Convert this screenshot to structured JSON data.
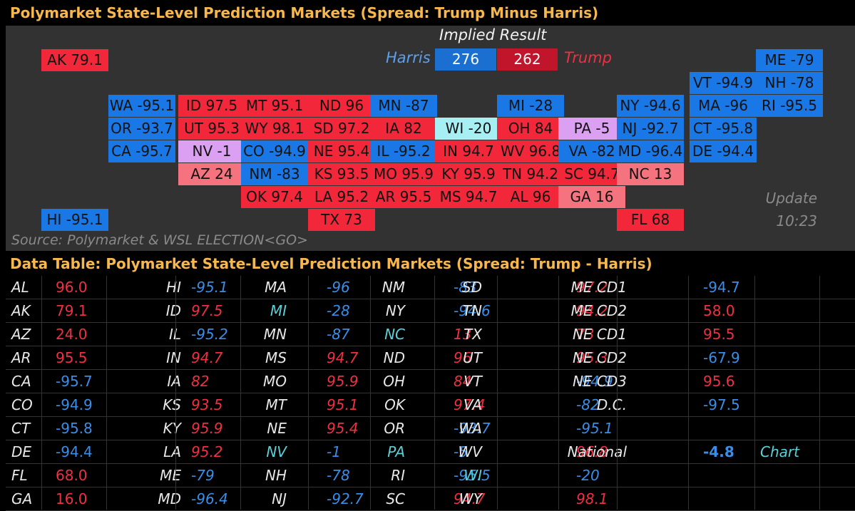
{
  "header": {
    "title": "Polymarket State-Level Prediction Markets (Spread: Trump Minus Harris)"
  },
  "implied": {
    "label": "Implied Result",
    "harris_label": "Harris",
    "harris_votes": "276",
    "trump_votes": "262",
    "trump_label": "Trump"
  },
  "update": {
    "label": "Update",
    "time": "10:23"
  },
  "source": "Source: Polymarket & WSL ELECTION<GO>",
  "table_title": "Data Table: Polymarket State-Level Prediction Markets (Spread: Trump - Harris)",
  "colors": {
    "dem": "#1a78e6",
    "rep": "#f2273a",
    "lean_rep": "#f5737e",
    "tossup_dem": "#a6eff2",
    "tossup_rep": "#dca0f2",
    "header": "#f5b74e"
  },
  "map_tiles": [
    {
      "label": "AK 79.1",
      "cls": "r"
    },
    {
      "label": "ME -79",
      "cls": "d"
    },
    {
      "label": "VT -94.9",
      "cls": "d"
    },
    {
      "label": "NH -78",
      "cls": "d"
    },
    {
      "label": "WA -95.1",
      "cls": "d"
    },
    {
      "label": "ID 97.5",
      "cls": "r"
    },
    {
      "label": "MT 95.1",
      "cls": "r"
    },
    {
      "label": "ND 96",
      "cls": "r"
    },
    {
      "label": "MN -87",
      "cls": "d"
    },
    {
      "label": "MI -28",
      "cls": "d"
    },
    {
      "label": "NY -94.6",
      "cls": "d"
    },
    {
      "label": "MA -96",
      "cls": "d"
    },
    {
      "label": "RI -95.5",
      "cls": "d"
    },
    {
      "label": "OR -93.7",
      "cls": "d"
    },
    {
      "label": "UT 95.3",
      "cls": "r"
    },
    {
      "label": "WY 98.1",
      "cls": "r"
    },
    {
      "label": "SD 97.2",
      "cls": "r"
    },
    {
      "label": "IA 82",
      "cls": "r"
    },
    {
      "label": "WI -20",
      "cls": "c"
    },
    {
      "label": "OH 84",
      "cls": "r"
    },
    {
      "label": "PA -5",
      "cls": "pu"
    },
    {
      "label": "NJ -92.7",
      "cls": "d"
    },
    {
      "label": "CT -95.8",
      "cls": "d"
    },
    {
      "label": "CA -95.7",
      "cls": "d"
    },
    {
      "label": "NV -1",
      "cls": "pu"
    },
    {
      "label": "CO -94.9",
      "cls": "d"
    },
    {
      "label": "NE 95.4",
      "cls": "r"
    },
    {
      "label": "IL -95.2",
      "cls": "d"
    },
    {
      "label": "IN 94.7",
      "cls": "r"
    },
    {
      "label": "WV 96.8",
      "cls": "r"
    },
    {
      "label": "VA -82",
      "cls": "d"
    },
    {
      "label": "MD -96.4",
      "cls": "d"
    },
    {
      "label": "DE -94.4",
      "cls": "d"
    },
    {
      "label": "AZ 24",
      "cls": "lr"
    },
    {
      "label": "NM -83",
      "cls": "d"
    },
    {
      "label": "KS 93.5",
      "cls": "r"
    },
    {
      "label": "MO 95.9",
      "cls": "r"
    },
    {
      "label": "KY 95.9",
      "cls": "r"
    },
    {
      "label": "TN 94.2",
      "cls": "r"
    },
    {
      "label": "SC 94.7",
      "cls": "r"
    },
    {
      "label": "NC 13",
      "cls": "lr"
    },
    {
      "label": "OK 97.4",
      "cls": "r"
    },
    {
      "label": "LA 95.2",
      "cls": "r"
    },
    {
      "label": "AR 95.5",
      "cls": "r"
    },
    {
      "label": "MS 94.7",
      "cls": "r"
    },
    {
      "label": "AL 96",
      "cls": "r"
    },
    {
      "label": "GA 16",
      "cls": "lr"
    },
    {
      "label": "HI -95.1",
      "cls": "d"
    },
    {
      "label": "TX 73",
      "cls": "r"
    },
    {
      "label": "FL 68",
      "cls": "r"
    }
  ],
  "table_rows": [
    [
      [
        "AL",
        "96.0",
        "pos"
      ],
      [
        "HI",
        "-95.1",
        "neg"
      ],
      [
        "MA",
        "-96",
        "neg"
      ],
      [
        "NM",
        "-83",
        "neg"
      ],
      [
        "SD",
        "97.2",
        "pos"
      ],
      [
        "ME CD1",
        "-94.7",
        "neg"
      ]
    ],
    [
      [
        "AK",
        "79.1",
        "pos"
      ],
      [
        "ID",
        "97.5",
        "pos"
      ],
      [
        "MI",
        "-28",
        "neg"
      ],
      [
        "NY",
        "-94.6",
        "neg"
      ],
      [
        "TN",
        "94.2",
        "pos"
      ],
      [
        "ME CD2",
        "58.0",
        "pos"
      ]
    ],
    [
      [
        "AZ",
        "24.0",
        "pos"
      ],
      [
        "IL",
        "-95.2",
        "neg"
      ],
      [
        "MN",
        "-87",
        "neg"
      ],
      [
        "NC",
        "13",
        "pos"
      ],
      [
        "TX",
        "73",
        "pos"
      ],
      [
        "NE CD1",
        "95.5",
        "pos"
      ]
    ],
    [
      [
        "AR",
        "95.5",
        "pos"
      ],
      [
        "IN",
        "94.7",
        "pos"
      ],
      [
        "MS",
        "94.7",
        "pos"
      ],
      [
        "ND",
        "96",
        "pos"
      ],
      [
        "UT",
        "95.3",
        "pos"
      ],
      [
        "NE CD2",
        "-67.9",
        "neg"
      ]
    ],
    [
      [
        "CA",
        "-95.7",
        "neg"
      ],
      [
        "IA",
        "82",
        "pos"
      ],
      [
        "MO",
        "95.9",
        "pos"
      ],
      [
        "OH",
        "84",
        "pos"
      ],
      [
        "VT",
        "-94.9",
        "neg"
      ],
      [
        "NE CD3",
        "95.6",
        "pos"
      ]
    ],
    [
      [
        "CO",
        "-94.9",
        "neg"
      ],
      [
        "KS",
        "93.5",
        "pos"
      ],
      [
        "MT",
        "95.1",
        "pos"
      ],
      [
        "OK",
        "97.4",
        "pos"
      ],
      [
        "VA",
        "-82",
        "neg"
      ],
      [
        "D.C.",
        "-97.5",
        "neg"
      ]
    ],
    [
      [
        "CT",
        "-95.8",
        "neg"
      ],
      [
        "KY",
        "95.9",
        "pos"
      ],
      [
        "NE",
        "95.4",
        "pos"
      ],
      [
        "OR",
        "-93.7",
        "neg"
      ],
      [
        "WA",
        "-95.1",
        "neg"
      ],
      [
        "",
        ""
      ]
    ],
    [
      [
        "DE",
        "-94.4",
        "neg"
      ],
      [
        "LA",
        "95.2",
        "pos"
      ],
      [
        "NV",
        "-1",
        "neg"
      ],
      [
        "PA",
        "-5",
        "neg"
      ],
      [
        "WV",
        "96.8",
        "pos"
      ],
      [
        "National",
        "-4.8",
        "nat"
      ]
    ],
    [
      [
        "FL",
        "68.0",
        "pos"
      ],
      [
        "ME",
        "-79",
        "neg"
      ],
      [
        "NH",
        "-78",
        "neg"
      ],
      [
        "RI",
        "-95.5",
        "neg"
      ],
      [
        "WI",
        "-20",
        "neg"
      ],
      [
        "",
        ""
      ]
    ],
    [
      [
        "GA",
        "16.0",
        "pos"
      ],
      [
        "MD",
        "-96.4",
        "neg"
      ],
      [
        "NJ",
        "-92.7",
        "neg"
      ],
      [
        "SC",
        "94.7",
        "pos"
      ],
      [
        "WY",
        "98.1",
        "pos"
      ],
      [
        "",
        ""
      ]
    ]
  ],
  "cyan_states": [
    "MI",
    "NC",
    "NV",
    "PA",
    "WI"
  ],
  "chart_link": "Chart"
}
